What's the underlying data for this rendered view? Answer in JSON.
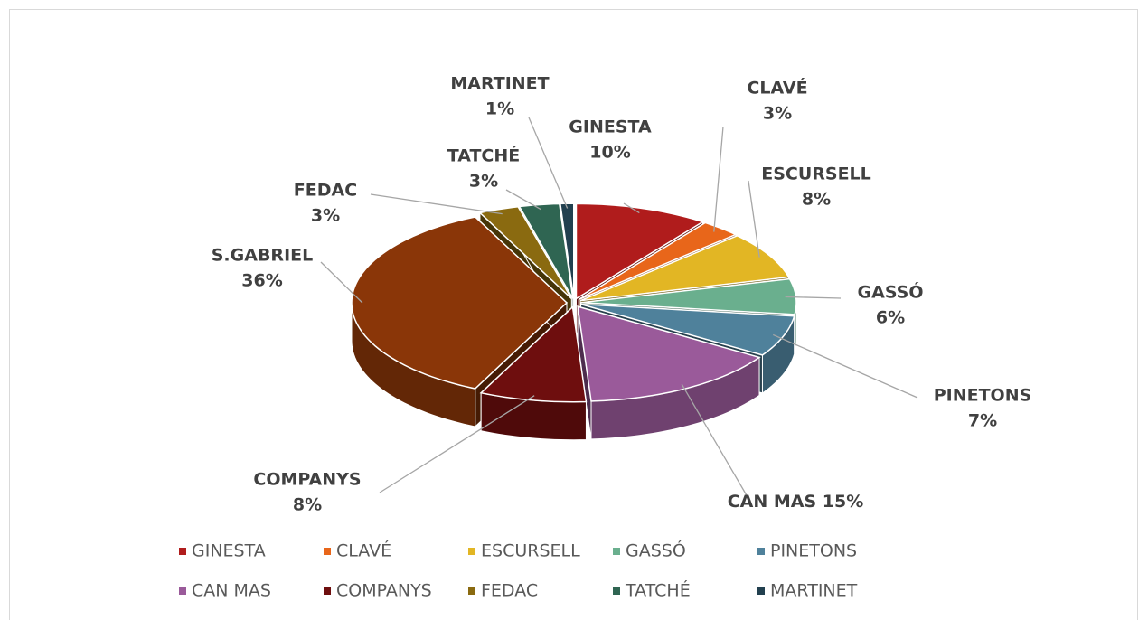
{
  "chart_data": {
    "type": "pie",
    "categories": [
      "GINESTA",
      "CLAVÉ",
      "ESCURSELL",
      "GASSÓ",
      "PINETONS",
      "CAN MAS",
      "COMPANYS",
      "S.GABRIEL",
      "FEDAC",
      "TATCHÉ",
      "MARTINET"
    ],
    "values": [
      10,
      3,
      8,
      6,
      7,
      15,
      8,
      36,
      3,
      3,
      1
    ],
    "value_labels": [
      "10%",
      "3%",
      "8%",
      "6%",
      "7%",
      "15%",
      "8%",
      "36%",
      "3%",
      "3%",
      "1%"
    ],
    "colors": [
      "#b01c1c",
      "#e8661a",
      "#e2b624",
      "#6aaf8e",
      "#4f819b",
      "#9a5a9a",
      "#6e0e0e",
      "#8a3608",
      "#8a6a10",
      "#2f6552",
      "#22404f"
    ],
    "legend": [
      "GINESTA",
      "CLAVÉ",
      "ESCURSELL",
      "GASSÓ",
      "PINETONS",
      "CAN MAS",
      "COMPANYS",
      "FEDAC",
      "TATCHÉ",
      "MARTINET"
    ]
  }
}
